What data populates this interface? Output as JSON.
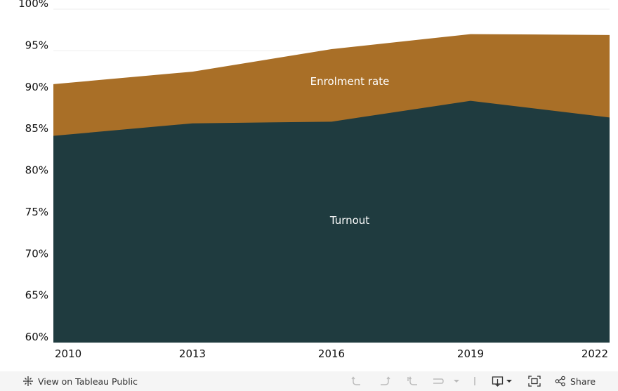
{
  "chart_data": {
    "type": "area",
    "stacked": false,
    "title": "",
    "xlabel": "",
    "ylabel": "",
    "categories": [
      "2010",
      "2013",
      "2016",
      "2019",
      "2022"
    ],
    "ylim": [
      60,
      100
    ],
    "y_ticks": [
      "60%",
      "65%",
      "70%",
      "75%",
      "80%",
      "85%",
      "90%",
      "95%",
      "100%"
    ],
    "grid": true,
    "series": [
      {
        "name": "Enrolment rate",
        "values": [
          91.0,
          92.5,
          95.2,
          97.0,
          96.9
        ],
        "color": "#a96f27"
      },
      {
        "name": "Turnout",
        "values": [
          84.8,
          86.3,
          86.5,
          89.0,
          87.0
        ],
        "color": "#1f3b3f"
      }
    ]
  },
  "toolbar": {
    "view_label": "View on Tableau Public",
    "share_label": "Share",
    "icons": [
      "tableau-logo-icon",
      "undo-icon",
      "redo-icon",
      "revert-icon",
      "refresh-icon",
      "dropdown-icon",
      "download-icon",
      "fullscreen-icon",
      "share-icon"
    ]
  }
}
